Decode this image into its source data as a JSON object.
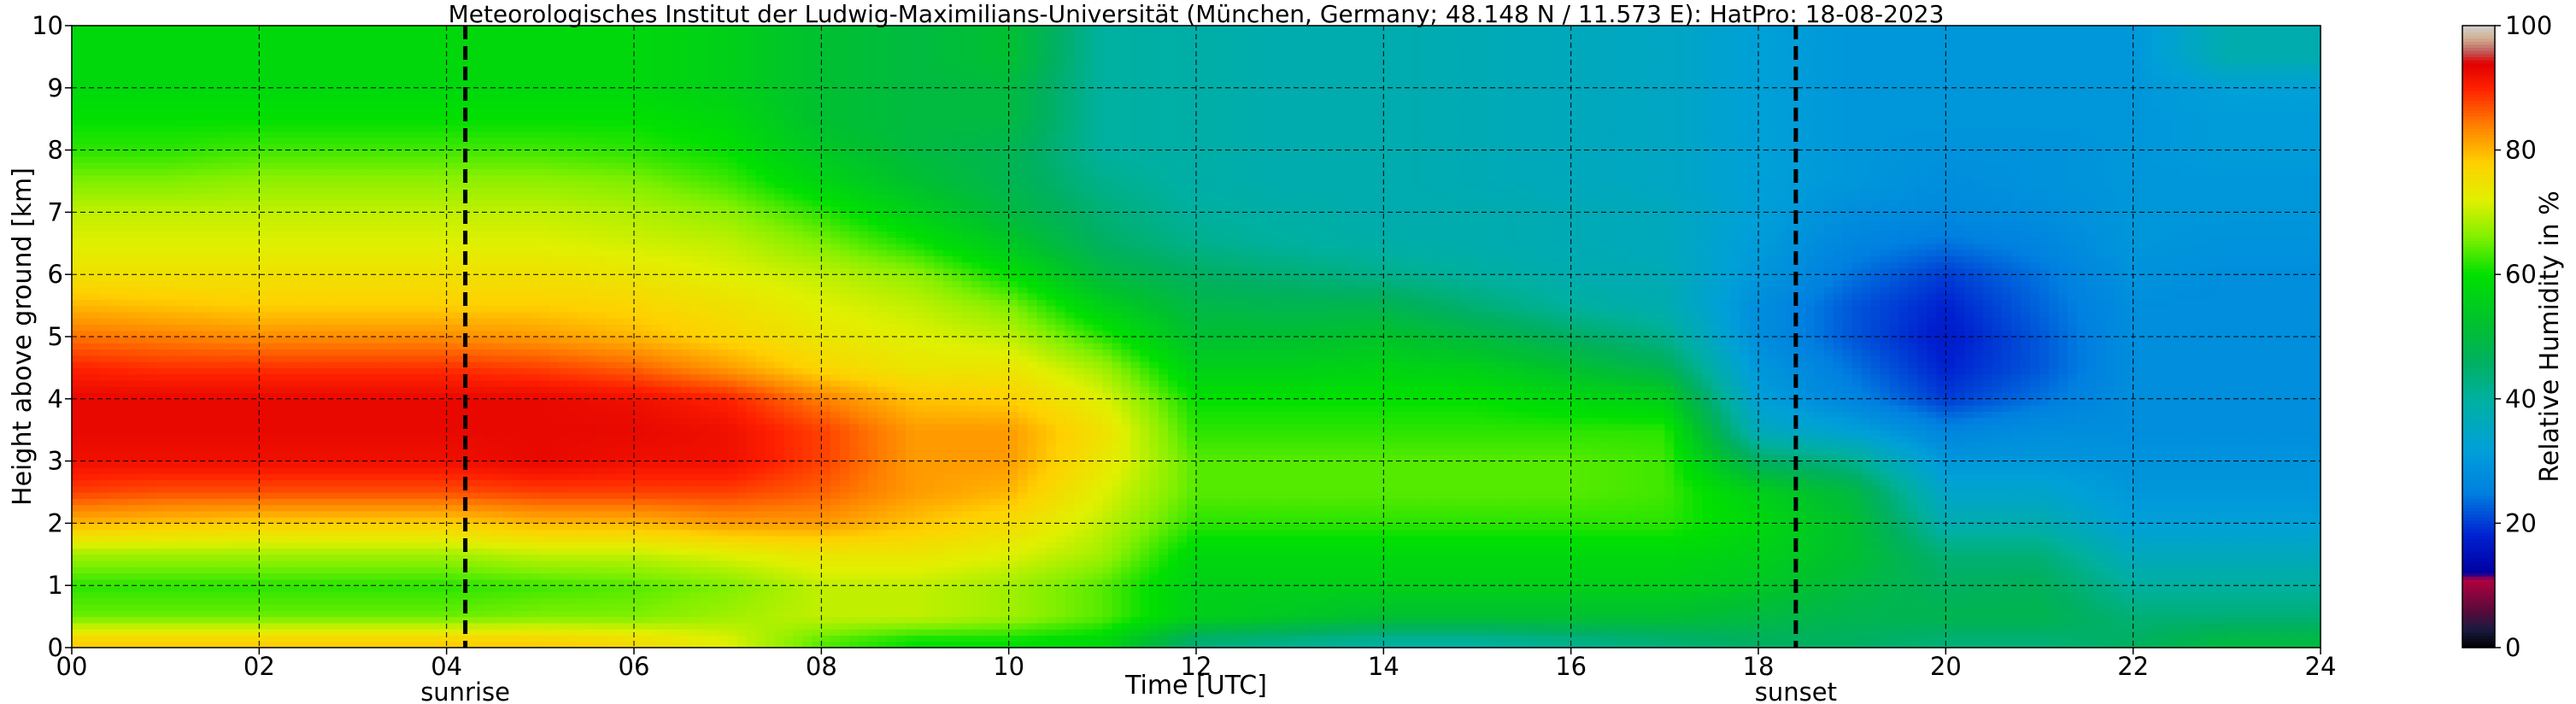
{
  "chart_data": {
    "type": "heatmap",
    "title": "Meteorologisches Institut der Ludwig-Maximilians-Universität (München, Germany; 48.148 N / 11.573 E):    HatPro: 18-08-2023",
    "xlabel": "Time [UTC]",
    "ylabel": "Height above ground [km]",
    "colorbar_label": "Relative Humidity in %",
    "x_ticks": [
      "00",
      "02",
      "04",
      "06",
      "08",
      "10",
      "12",
      "14",
      "16",
      "18",
      "20",
      "22",
      "24"
    ],
    "y_ticks": [
      "0",
      "1",
      "2",
      "3",
      "4",
      "5",
      "6",
      "7",
      "8",
      "9",
      "10"
    ],
    "colorbar_ticks": [
      "0",
      "20",
      "40",
      "60",
      "80",
      "100"
    ],
    "xlim": [
      0,
      24
    ],
    "ylim": [
      0,
      10
    ],
    "clim": [
      0,
      100
    ],
    "grid": true,
    "events": [
      {
        "label": "sunrise",
        "time": 4.2
      },
      {
        "label": "sunset",
        "time": 18.4
      }
    ],
    "colormap": [
      {
        "value": 0,
        "color": "#000000"
      },
      {
        "value": 3,
        "color": "#1a1a40"
      },
      {
        "value": 6,
        "color": "#5a0a3a"
      },
      {
        "value": 11,
        "color": "#b00040"
      },
      {
        "value": 12,
        "color": "#0000a0"
      },
      {
        "value": 18,
        "color": "#0020d0"
      },
      {
        "value": 25,
        "color": "#0080e0"
      },
      {
        "value": 32,
        "color": "#00a0d8"
      },
      {
        "value": 40,
        "color": "#00b0a0"
      },
      {
        "value": 46,
        "color": "#00b060"
      },
      {
        "value": 52,
        "color": "#00c030"
      },
      {
        "value": 60,
        "color": "#00e000"
      },
      {
        "value": 66,
        "color": "#80f000"
      },
      {
        "value": 72,
        "color": "#e0f000"
      },
      {
        "value": 78,
        "color": "#ffd000"
      },
      {
        "value": 84,
        "color": "#ff8000"
      },
      {
        "value": 90,
        "color": "#ff2000"
      },
      {
        "value": 94,
        "color": "#e00000"
      },
      {
        "value": 96,
        "color": "#c06060"
      },
      {
        "value": 98,
        "color": "#d0b090"
      },
      {
        "value": 100,
        "color": "#d0d0d0"
      }
    ],
    "heights_km": [
      0.1,
      0.5,
      1.0,
      1.5,
      2.0,
      2.5,
      3.0,
      3.5,
      4.0,
      4.5,
      5.0,
      5.5,
      6.0,
      6.5,
      7.0,
      7.5,
      8.0,
      8.5,
      9.0,
      9.5
    ],
    "time_points_utc": [
      0,
      1,
      2,
      3,
      4,
      5,
      6,
      7,
      8,
      9,
      10,
      11,
      12,
      13,
      14,
      15,
      16,
      17,
      18,
      19,
      20,
      21,
      22,
      23,
      24
    ],
    "rh_profiles": [
      [
        78,
        65,
        62,
        68,
        80,
        88,
        92,
        93,
        93,
        90,
        85,
        80,
        75,
        72,
        70,
        66,
        62,
        60,
        58,
        58
      ],
      [
        78,
        65,
        62,
        68,
        79,
        87,
        92,
        93,
        93,
        89,
        84,
        79,
        75,
        72,
        70,
        66,
        62,
        60,
        58,
        58
      ],
      [
        78,
        65,
        62,
        68,
        78,
        87,
        92,
        93,
        93,
        89,
        83,
        78,
        75,
        72,
        70,
        67,
        63,
        60,
        58,
        58
      ],
      [
        78,
        65,
        62,
        68,
        78,
        87,
        92,
        93,
        93,
        89,
        83,
        78,
        75,
        72,
        70,
        67,
        63,
        60,
        58,
        58
      ],
      [
        78,
        65,
        62,
        68,
        78,
        87,
        92,
        93,
        93,
        89,
        83,
        78,
        75,
        72,
        70,
        67,
        63,
        60,
        58,
        58
      ],
      [
        78,
        66,
        63,
        70,
        80,
        88,
        93,
        93,
        93,
        88,
        82,
        78,
        75,
        72,
        70,
        67,
        63,
        60,
        58,
        58
      ],
      [
        76,
        66,
        64,
        70,
        80,
        88,
        92,
        93,
        92,
        86,
        80,
        77,
        74,
        71,
        69,
        66,
        62,
        60,
        58,
        58
      ],
      [
        72,
        68,
        66,
        72,
        82,
        88,
        92,
        92,
        90,
        82,
        77,
        75,
        72,
        70,
        67,
        63,
        60,
        58,
        56,
        56
      ],
      [
        64,
        70,
        70,
        74,
        82,
        86,
        88,
        88,
        84,
        77,
        74,
        72,
        70,
        66,
        62,
        57,
        54,
        52,
        52,
        52
      ],
      [
        60,
        70,
        70,
        74,
        79,
        82,
        82,
        82,
        79,
        74,
        72,
        70,
        67,
        61,
        56,
        52,
        50,
        50,
        50,
        50
      ],
      [
        60,
        68,
        68,
        72,
        76,
        80,
        82,
        82,
        78,
        74,
        70,
        66,
        60,
        54,
        50,
        48,
        48,
        50,
        50,
        52
      ],
      [
        58,
        64,
        64,
        68,
        70,
        72,
        74,
        75,
        72,
        68,
        62,
        56,
        50,
        46,
        44,
        42,
        40,
        40,
        40,
        40
      ],
      [
        44,
        56,
        56,
        58,
        62,
        64,
        64,
        62,
        60,
        56,
        52,
        49,
        46,
        42,
        40,
        39,
        39,
        39,
        39,
        39
      ],
      [
        42,
        54,
        56,
        58,
        62,
        64,
        64,
        62,
        60,
        56,
        52,
        48,
        44,
        40,
        39,
        38,
        38,
        38,
        38,
        38
      ],
      [
        40,
        52,
        56,
        58,
        62,
        64,
        64,
        62,
        60,
        57,
        53,
        48,
        42,
        39,
        38,
        38,
        38,
        38,
        38,
        38
      ],
      [
        40,
        52,
        56,
        58,
        62,
        64,
        64,
        62,
        60,
        56,
        50,
        44,
        40,
        38,
        38,
        37,
        37,
        37,
        37,
        37
      ],
      [
        42,
        52,
        56,
        58,
        62,
        64,
        64,
        62,
        58,
        52,
        46,
        40,
        38,
        37,
        37,
        36,
        36,
        36,
        36,
        36
      ],
      [
        44,
        52,
        56,
        58,
        62,
        63,
        63,
        62,
        56,
        48,
        42,
        38,
        37,
        36,
        36,
        35,
        35,
        35,
        35,
        35
      ],
      [
        46,
        50,
        54,
        56,
        58,
        56,
        46,
        36,
        32,
        30,
        28,
        28,
        30,
        31,
        32,
        32,
        32,
        32,
        32,
        32
      ],
      [
        46,
        48,
        50,
        52,
        52,
        50,
        42,
        32,
        26,
        24,
        22,
        22,
        24,
        26,
        28,
        30,
        30,
        30,
        30,
        30
      ],
      [
        44,
        48,
        46,
        44,
        38,
        34,
        30,
        26,
        20,
        18,
        17,
        18,
        20,
        24,
        27,
        28,
        29,
        30,
        30,
        30
      ],
      [
        44,
        48,
        47,
        44,
        38,
        34,
        30,
        28,
        24,
        22,
        22,
        23,
        24,
        26,
        28,
        29,
        29,
        30,
        30,
        30
      ],
      [
        46,
        44,
        40,
        36,
        32,
        30,
        29,
        28,
        28,
        28,
        28,
        28,
        29,
        30,
        30,
        30,
        30,
        30,
        30,
        30
      ],
      [
        50,
        44,
        40,
        36,
        32,
        30,
        29,
        28,
        28,
        28,
        28,
        28,
        28,
        29,
        30,
        30,
        31,
        31,
        32,
        38
      ],
      [
        50,
        44,
        40,
        36,
        32,
        30,
        29,
        28,
        28,
        28,
        28,
        28,
        28,
        29,
        30,
        30,
        31,
        31,
        32,
        38
      ]
    ]
  }
}
